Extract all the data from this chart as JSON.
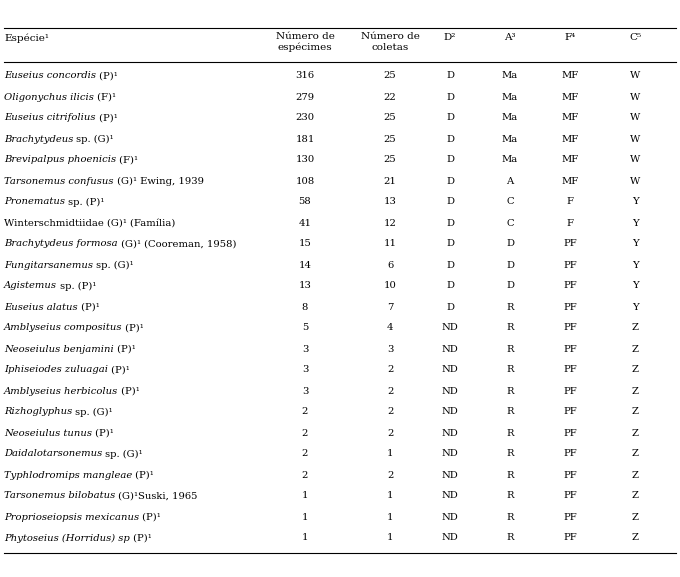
{
  "rows": [
    {
      "italic": "Euseius concordis",
      "roman": " (P)¹",
      "n_spec": "316",
      "n_col": "25",
      "D": "D",
      "A": "Ma",
      "F": "MF",
      "C": "W"
    },
    {
      "italic": "Oligonychus ilicis",
      "roman": " (F)¹",
      "n_spec": "279",
      "n_col": "22",
      "D": "D",
      "A": "Ma",
      "F": "MF",
      "C": "W"
    },
    {
      "italic": "Euseius citrifolius",
      "roman": " (P)¹",
      "n_spec": "230",
      "n_col": "25",
      "D": "D",
      "A": "Ma",
      "F": "MF",
      "C": "W"
    },
    {
      "italic": "Brachytydeus",
      "roman": " sp. (G)¹",
      "n_spec": "181",
      "n_col": "25",
      "D": "D",
      "A": "Ma",
      "F": "MF",
      "C": "W"
    },
    {
      "italic": "Brevipalpus phoenicis",
      "roman": " (F)¹",
      "n_spec": "130",
      "n_col": "25",
      "D": "D",
      "A": "Ma",
      "F": "MF",
      "C": "W"
    },
    {
      "italic": "Tarsonemus confusus",
      "roman": " (G)¹ Ewing, 1939",
      "n_spec": "108",
      "n_col": "21",
      "D": "D",
      "A": "A",
      "F": "MF",
      "C": "W"
    },
    {
      "italic": "Pronematus",
      "roman": " sp. (P)¹",
      "n_spec": "58",
      "n_col": "13",
      "D": "D",
      "A": "C",
      "F": "F",
      "C": "Y"
    },
    {
      "italic": "",
      "roman": "Winterschmidtiidae (G)¹ (Família)",
      "n_spec": "41",
      "n_col": "12",
      "D": "D",
      "A": "C",
      "F": "F",
      "C": "Y"
    },
    {
      "italic": "Brachytydeus formosa",
      "roman": " (G)¹ (Cooreman, 1958)",
      "n_spec": "15",
      "n_col": "11",
      "D": "D",
      "A": "D",
      "F": "PF",
      "C": "Y"
    },
    {
      "italic": "Fungitarsanemus",
      "roman": " sp. (G)¹",
      "n_spec": "14",
      "n_col": "6",
      "D": "D",
      "A": "D",
      "F": "PF",
      "C": "Y"
    },
    {
      "italic": "Agistemus",
      "roman": " sp. (P)¹",
      "n_spec": "13",
      "n_col": "10",
      "D": "D",
      "A": "D",
      "F": "PF",
      "C": "Y"
    },
    {
      "italic": "Euseius alatus",
      "roman": " (P)¹",
      "n_spec": "8",
      "n_col": "7",
      "D": "D",
      "A": "R",
      "F": "PF",
      "C": "Y"
    },
    {
      "italic": "Amblyseius compositus",
      "roman": " (P)¹",
      "n_spec": "5",
      "n_col": "4",
      "D": "ND",
      "A": "R",
      "F": "PF",
      "C": "Z"
    },
    {
      "italic": "Neoseiulus benjamini",
      "roman": " (P)¹",
      "n_spec": "3",
      "n_col": "3",
      "D": "ND",
      "A": "R",
      "F": "PF",
      "C": "Z"
    },
    {
      "italic": "Iphiseiodes zuluagai",
      "roman": " (P)¹",
      "n_spec": "3",
      "n_col": "2",
      "D": "ND",
      "A": "R",
      "F": "PF",
      "C": "Z"
    },
    {
      "italic": "Amblyseius herbicolus",
      "roman": " (P)¹",
      "n_spec": "3",
      "n_col": "2",
      "D": "ND",
      "A": "R",
      "F": "PF",
      "C": "Z"
    },
    {
      "italic": "Rizhoglyphus",
      "roman": " sp. (G)¹",
      "n_spec": "2",
      "n_col": "2",
      "D": "ND",
      "A": "R",
      "F": "PF",
      "C": "Z"
    },
    {
      "italic": "Neoseiulus tunus",
      "roman": " (P)¹",
      "n_spec": "2",
      "n_col": "2",
      "D": "ND",
      "A": "R",
      "F": "PF",
      "C": "Z"
    },
    {
      "italic": "Daidalotarsonemus",
      "roman": " sp. (G)¹",
      "n_spec": "2",
      "n_col": "1",
      "D": "ND",
      "A": "R",
      "F": "PF",
      "C": "Z"
    },
    {
      "italic": "Typhlodromips mangleae",
      "roman": " (P)¹",
      "n_spec": "2",
      "n_col": "2",
      "D": "ND",
      "A": "R",
      "F": "PF",
      "C": "Z"
    },
    {
      "italic": "Tarsonemus bilobatus",
      "roman": " (G)¹Suski, 1965",
      "n_spec": "1",
      "n_col": "1",
      "D": "ND",
      "A": "R",
      "F": "PF",
      "C": "Z"
    },
    {
      "italic": "Proprioseiopsis mexicanus",
      "roman": " (P)¹",
      "n_spec": "1",
      "n_col": "1",
      "D": "ND",
      "A": "R",
      "F": "PF",
      "C": "Z"
    },
    {
      "italic": "Phytoseius (Horridus) sp",
      "roman": " (P)¹",
      "n_spec": "1",
      "n_col": "1",
      "D": "ND",
      "A": "R",
      "F": "PF",
      "C": "Z"
    }
  ],
  "bg_color": "#ffffff",
  "text_color": "#000000",
  "fontsize": 7.2,
  "header_fontsize": 7.5,
  "fig_width": 6.8,
  "fig_height": 5.77,
  "dpi": 100
}
